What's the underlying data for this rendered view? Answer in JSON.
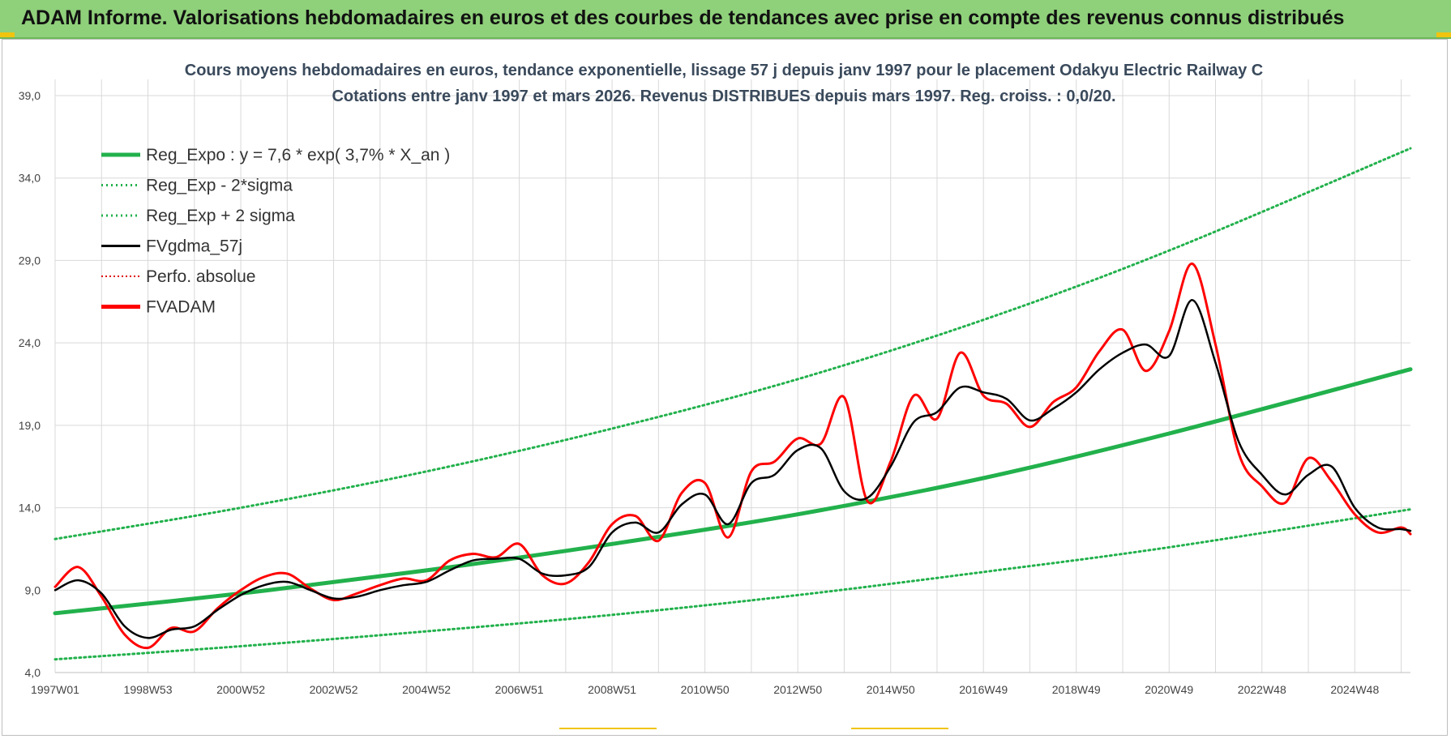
{
  "header": {
    "title": "ADAM Informe. Valorisations hebdomadaires en euros et des courbes de tendances avec prise en compte des revenus connus distribués"
  },
  "colors": {
    "header_bg": "#8fd07a",
    "reg_expo": "#22b14c",
    "sigma_band": "#22b14c",
    "fvgdma": "#000000",
    "perfo": "#e00000",
    "fvadam": "#ff0000",
    "grid": "#d9d9d9"
  },
  "chart_data": {
    "type": "line",
    "title": "Cours moyens hebdomadaires en euros, tendance exponentielle, lissage 57 j depuis janv 1997 pour le placement Odakyu Electric Railway C",
    "subtitle": "Cotations entre janv 1997 et mars 2026. Revenus DISTRIBUES depuis mars 1997. Reg. croiss. : 0,0/20.",
    "xlabel": "",
    "ylabel": "",
    "x_range": [
      1997.0,
      2026.2
    ],
    "ylim": [
      4.0,
      39.0
    ],
    "y_ticks": [
      "4,0",
      "9,0",
      "14,0",
      "19,0",
      "24,0",
      "29,0",
      "34,0",
      "39,0"
    ],
    "x_ticks": [
      {
        "label": "1997W01",
        "x": 1997.0
      },
      {
        "label": "1998W53",
        "x": 1999.0
      },
      {
        "label": "2000W52",
        "x": 2001.0
      },
      {
        "label": "2002W52",
        "x": 2003.0
      },
      {
        "label": "2004W52",
        "x": 2005.0
      },
      {
        "label": "2006W51",
        "x": 2007.0
      },
      {
        "label": "2008W51",
        "x": 2009.0
      },
      {
        "label": "2010W50",
        "x": 2011.0
      },
      {
        "label": "2012W50",
        "x": 2013.0
      },
      {
        "label": "2014W50",
        "x": 2015.0
      },
      {
        "label": "2016W49",
        "x": 2017.0
      },
      {
        "label": "2018W49",
        "x": 2019.0
      },
      {
        "label": "2020W49",
        "x": 2021.0
      },
      {
        "label": "2022W48",
        "x": 2023.0
      },
      {
        "label": "2024W48",
        "x": 2025.0
      }
    ],
    "grid": true,
    "legend_position": "top-left",
    "legend": [
      {
        "name": "Reg_Expo : y = 7,6 * exp( 3,7% *  X_an )",
        "style": "solid-thick",
        "color": "#22b14c"
      },
      {
        "name": "Reg_Exp - 2*sigma",
        "style": "dotted",
        "color": "#22b14c"
      },
      {
        "name": "Reg_Exp + 2 sigma",
        "style": "dotted",
        "color": "#22b14c"
      },
      {
        "name": "FVgdma_57j",
        "style": "solid",
        "color": "#000000"
      },
      {
        "name": "Perfo. absolue",
        "style": "dotted-thin",
        "color": "#e00000"
      },
      {
        "name": "FVADAM",
        "style": "solid-thick",
        "color": "#ff0000"
      }
    ],
    "series": [
      {
        "name": "Reg_Expo : y = 7,6 * exp( 3,7% *  X_an )",
        "x": [
          1997.0,
          2001.0,
          2005.0,
          2009.0,
          2013.0,
          2017.0,
          2021.0,
          2026.2
        ],
        "values": [
          7.6,
          8.8,
          10.2,
          11.8,
          13.6,
          15.8,
          18.5,
          22.4
        ]
      },
      {
        "name": "Reg_Exp - 2*sigma",
        "x": [
          1997.0,
          2001.0,
          2005.0,
          2009.0,
          2013.0,
          2017.0,
          2021.0,
          2026.2
        ],
        "values": [
          4.8,
          5.6,
          6.5,
          7.5,
          8.7,
          10.1,
          11.6,
          13.9
        ]
      },
      {
        "name": "Reg_Exp + 2 sigma",
        "x": [
          1997.0,
          2001.0,
          2005.0,
          2009.0,
          2013.0,
          2017.0,
          2021.0,
          2026.2
        ],
        "values": [
          12.1,
          14.0,
          16.2,
          18.8,
          21.8,
          25.4,
          29.6,
          35.8
        ]
      },
      {
        "name": "FVgdma_57j",
        "x": [
          1997.0,
          1997.5,
          1998.0,
          1998.5,
          1999.0,
          1999.5,
          2000.0,
          2000.5,
          2001.0,
          2001.5,
          2002.0,
          2002.5,
          2003.0,
          2003.5,
          2004.0,
          2004.5,
          2005.0,
          2005.5,
          2006.0,
          2006.5,
          2007.0,
          2007.5,
          2008.0,
          2008.5,
          2009.0,
          2009.5,
          2010.0,
          2010.5,
          2011.0,
          2011.5,
          2012.0,
          2012.5,
          2013.0,
          2013.5,
          2014.0,
          2014.5,
          2015.0,
          2015.5,
          2016.0,
          2016.5,
          2017.0,
          2017.5,
          2018.0,
          2018.5,
          2019.0,
          2019.5,
          2020.0,
          2020.5,
          2021.0,
          2021.5,
          2022.0,
          2022.5,
          2023.0,
          2023.5,
          2024.0,
          2024.5,
          2025.0,
          2025.5,
          2026.0,
          2026.2
        ],
        "values": [
          9.0,
          9.6,
          8.8,
          6.8,
          6.1,
          6.6,
          6.8,
          7.8,
          8.7,
          9.3,
          9.5,
          9.0,
          8.5,
          8.6,
          9.0,
          9.3,
          9.5,
          10.2,
          10.8,
          10.9,
          10.9,
          10.0,
          9.9,
          10.4,
          12.5,
          13.1,
          12.5,
          14.2,
          14.8,
          13.0,
          15.5,
          16.0,
          17.5,
          17.6,
          15.0,
          14.6,
          16.5,
          19.2,
          19.8,
          21.3,
          21.0,
          20.6,
          19.3,
          20.0,
          21.0,
          22.4,
          23.4,
          23.9,
          23.2,
          26.6,
          22.8,
          18.0,
          16.0,
          14.8,
          16.0,
          16.5,
          14.0,
          12.8,
          12.7,
          12.6
        ]
      },
      {
        "name": "FVADAM",
        "x": [
          1997.0,
          1997.5,
          1998.0,
          1998.5,
          1999.0,
          1999.5,
          2000.0,
          2000.5,
          2001.0,
          2001.5,
          2002.0,
          2002.5,
          2003.0,
          2003.5,
          2004.0,
          2004.5,
          2005.0,
          2005.5,
          2006.0,
          2006.5,
          2007.0,
          2007.5,
          2008.0,
          2008.5,
          2009.0,
          2009.5,
          2010.0,
          2010.5,
          2011.0,
          2011.5,
          2012.0,
          2012.5,
          2013.0,
          2013.5,
          2014.0,
          2014.5,
          2015.0,
          2015.5,
          2016.0,
          2016.5,
          2017.0,
          2017.5,
          2018.0,
          2018.5,
          2019.0,
          2019.5,
          2020.0,
          2020.5,
          2021.0,
          2021.5,
          2022.0,
          2022.5,
          2023.0,
          2023.5,
          2024.0,
          2024.5,
          2025.0,
          2025.5,
          2026.0,
          2026.2
        ],
        "values": [
          9.2,
          10.4,
          8.6,
          6.3,
          5.5,
          6.7,
          6.5,
          7.9,
          9.0,
          9.8,
          10.0,
          9.1,
          8.4,
          8.8,
          9.3,
          9.7,
          9.6,
          10.8,
          11.2,
          11.0,
          11.8,
          9.9,
          9.4,
          10.7,
          13.0,
          13.5,
          12.0,
          14.9,
          15.5,
          12.2,
          16.2,
          16.8,
          18.2,
          17.9,
          20.7,
          14.4,
          16.8,
          20.8,
          19.4,
          23.4,
          20.8,
          20.3,
          18.9,
          20.4,
          21.3,
          23.5,
          24.8,
          22.3,
          24.7,
          28.8,
          23.9,
          17.3,
          15.3,
          14.3,
          17.0,
          15.6,
          13.6,
          12.5,
          12.8,
          12.4
        ]
      }
    ]
  }
}
